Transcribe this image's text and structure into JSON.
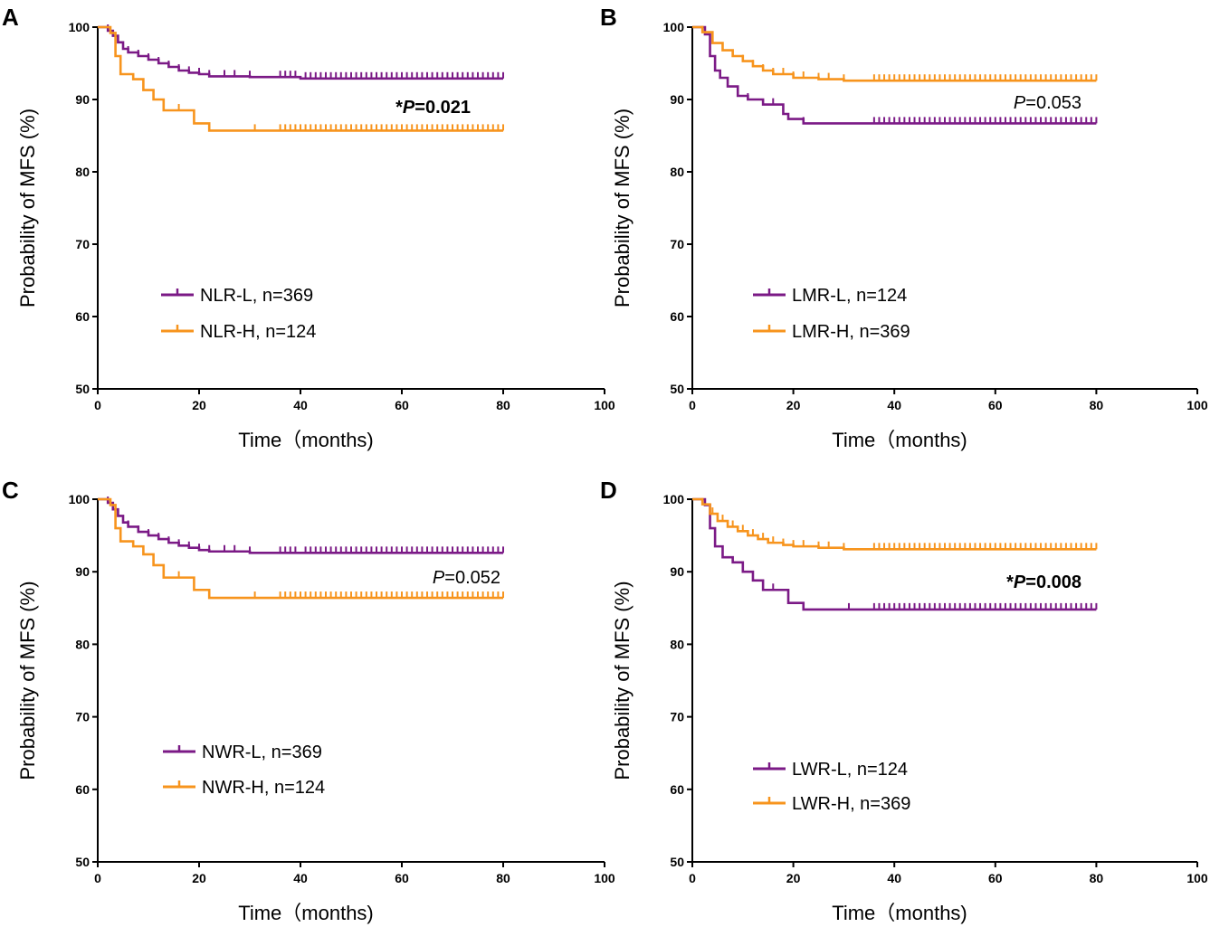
{
  "colors": {
    "purple": "#7b1a86",
    "orange": "#f7941d",
    "axis": "#000000"
  },
  "chart_data": [
    {
      "panel": "A",
      "type": "line",
      "xlabel": "Time（months)",
      "ylabel": "Probability of MFS (%)",
      "xlim": [
        0,
        100
      ],
      "ylim": [
        50,
        100
      ],
      "xticks": [
        0,
        20,
        40,
        60,
        80,
        100
      ],
      "yticks": [
        50,
        60,
        70,
        80,
        90,
        100
      ],
      "p_star": "*",
      "p_letter": "P",
      "p_rest": "=0.021",
      "p_bold": true,
      "series": [
        {
          "name": "NLR-L, n=369",
          "color": "purple",
          "steps": [
            [
              0,
              100
            ],
            [
              2,
              99.5
            ],
            [
              3,
              98.8
            ],
            [
              4,
              97.9
            ],
            [
              5,
              97
            ],
            [
              6,
              96.5
            ],
            [
              8,
              96
            ],
            [
              10,
              95.5
            ],
            [
              12,
              95
            ],
            [
              14,
              94.5
            ],
            [
              16,
              94
            ],
            [
              18,
              93.7
            ],
            [
              20,
              93.5
            ],
            [
              22,
              93.2
            ],
            [
              30,
              93.1
            ],
            [
              40,
              92.9
            ],
            [
              80,
              92.9
            ]
          ],
          "censor": [
            2,
            4,
            6,
            8,
            10,
            12,
            14,
            16,
            18,
            20,
            22,
            25,
            27,
            30,
            36,
            37,
            38,
            39,
            41,
            42,
            43,
            44,
            45,
            46,
            47,
            48,
            49,
            50,
            51,
            52,
            53,
            54,
            55,
            56,
            57,
            58,
            59,
            60,
            61,
            62,
            63,
            64,
            65,
            66,
            67,
            68,
            69,
            70,
            71,
            72,
            73,
            74,
            75,
            76,
            77,
            78,
            79,
            80
          ]
        },
        {
          "name": "NLR-H, n=124",
          "color": "orange",
          "steps": [
            [
              0,
              100
            ],
            [
              2.5,
              99.2
            ],
            [
              3.5,
              96
            ],
            [
              4.5,
              93.5
            ],
            [
              7,
              92.8
            ],
            [
              9,
              91.3
            ],
            [
              11,
              90
            ],
            [
              13,
              88.5
            ],
            [
              19,
              86.7
            ],
            [
              22,
              85.7
            ],
            [
              80,
              85.7
            ]
          ],
          "censor": [
            13,
            16,
            31,
            36,
            37,
            38,
            39,
            40,
            41,
            42,
            43,
            44,
            45,
            46,
            47,
            48,
            49,
            50,
            51,
            52,
            53,
            54,
            55,
            56,
            57,
            58,
            59,
            60,
            61,
            62,
            63,
            64,
            65,
            66,
            67,
            68,
            69,
            70,
            71,
            72,
            73,
            74,
            75,
            76,
            77,
            78,
            79,
            80
          ]
        }
      ]
    },
    {
      "panel": "B",
      "type": "line",
      "xlabel": "Time（months)",
      "ylabel": "Probability of MFS (%)",
      "xlim": [
        0,
        100
      ],
      "ylim": [
        50,
        100
      ],
      "xticks": [
        0,
        20,
        40,
        60,
        80,
        100
      ],
      "yticks": [
        50,
        60,
        70,
        80,
        90,
        100
      ],
      "p_star": "",
      "p_letter": "P",
      "p_rest": "=0.053",
      "p_bold": false,
      "series": [
        {
          "name": "LMR-L, n=124",
          "color": "purple",
          "steps": [
            [
              0,
              100
            ],
            [
              2.5,
              99
            ],
            [
              3.5,
              96
            ],
            [
              4.5,
              94
            ],
            [
              5.5,
              93
            ],
            [
              7,
              91.8
            ],
            [
              9,
              90.5
            ],
            [
              11,
              90
            ],
            [
              14,
              89.3
            ],
            [
              18,
              88
            ],
            [
              19,
              87.3
            ],
            [
              22,
              86.7
            ],
            [
              80,
              86.7
            ]
          ],
          "censor": [
            11,
            16,
            22,
            36,
            37,
            38,
            39,
            40,
            41,
            42,
            43,
            44,
            45,
            46,
            47,
            48,
            49,
            50,
            51,
            52,
            53,
            54,
            55,
            56,
            57,
            58,
            59,
            60,
            61,
            62,
            63,
            64,
            65,
            66,
            67,
            68,
            69,
            70,
            71,
            72,
            73,
            74,
            75,
            76,
            77,
            78,
            79,
            80
          ]
        },
        {
          "name": "LMR-H, n=369",
          "color": "orange",
          "steps": [
            [
              0,
              100
            ],
            [
              2,
              99.3
            ],
            [
              4,
              97.8
            ],
            [
              6,
              96.8
            ],
            [
              8,
              96
            ],
            [
              10,
              95.3
            ],
            [
              12,
              94.6
            ],
            [
              14,
              94
            ],
            [
              16,
              93.5
            ],
            [
              20,
              93
            ],
            [
              25,
              92.8
            ],
            [
              30,
              92.6
            ],
            [
              80,
              92.6
            ]
          ],
          "censor": [
            2,
            4,
            6,
            8,
            10,
            12,
            14,
            16,
            18,
            20,
            22,
            25,
            27,
            30,
            36,
            37,
            38,
            39,
            40,
            41,
            42,
            43,
            44,
            45,
            46,
            47,
            48,
            49,
            50,
            51,
            52,
            53,
            54,
            55,
            56,
            57,
            58,
            59,
            60,
            61,
            62,
            63,
            64,
            65,
            66,
            67,
            68,
            69,
            70,
            71,
            72,
            73,
            74,
            75,
            76,
            77,
            78,
            79,
            80
          ]
        }
      ]
    },
    {
      "panel": "C",
      "type": "line",
      "xlabel": "Time（months)",
      "ylabel": "Probability of MFS (%)",
      "xlim": [
        0,
        100
      ],
      "ylim": [
        50,
        100
      ],
      "xticks": [
        0,
        20,
        40,
        60,
        80,
        100
      ],
      "yticks": [
        50,
        60,
        70,
        80,
        90,
        100
      ],
      "p_star": "",
      "p_letter": "P",
      "p_rest": "=0.052",
      "p_bold": false,
      "series": [
        {
          "name": "NWR-L, n=369",
          "color": "purple",
          "steps": [
            [
              0,
              100
            ],
            [
              2,
              99.5
            ],
            [
              3,
              98.6
            ],
            [
              4,
              97.7
            ],
            [
              5,
              96.8
            ],
            [
              6,
              96.2
            ],
            [
              8,
              95.5
            ],
            [
              10,
              95
            ],
            [
              12,
              94.5
            ],
            [
              14,
              94
            ],
            [
              16,
              93.6
            ],
            [
              18,
              93.3
            ],
            [
              20,
              93
            ],
            [
              22,
              92.8
            ],
            [
              30,
              92.6
            ],
            [
              80,
              92.6
            ]
          ],
          "censor": [
            2,
            4,
            6,
            8,
            10,
            12,
            14,
            16,
            18,
            20,
            22,
            25,
            27,
            30,
            36,
            37,
            38,
            39,
            41,
            42,
            43,
            44,
            45,
            46,
            47,
            48,
            49,
            50,
            51,
            52,
            53,
            54,
            55,
            56,
            57,
            58,
            59,
            60,
            61,
            62,
            63,
            64,
            65,
            66,
            67,
            68,
            69,
            70,
            71,
            72,
            73,
            74,
            75,
            76,
            77,
            78,
            79,
            80
          ]
        },
        {
          "name": "NWR-H, n=124",
          "color": "orange",
          "steps": [
            [
              0,
              100
            ],
            [
              2.5,
              99.2
            ],
            [
              3.5,
              96
            ],
            [
              4.5,
              94.2
            ],
            [
              7,
              93.5
            ],
            [
              9,
              92.4
            ],
            [
              11,
              90.9
            ],
            [
              13,
              89.2
            ],
            [
              19,
              87.5
            ],
            [
              22,
              86.4
            ],
            [
              80,
              86.4
            ]
          ],
          "censor": [
            13,
            16,
            31,
            36,
            37,
            38,
            39,
            40,
            41,
            42,
            43,
            44,
            45,
            46,
            47,
            48,
            49,
            50,
            51,
            52,
            53,
            54,
            55,
            56,
            57,
            58,
            59,
            60,
            61,
            62,
            63,
            64,
            65,
            66,
            67,
            68,
            69,
            70,
            71,
            72,
            73,
            74,
            75,
            76,
            77,
            78,
            79,
            80
          ]
        }
      ]
    },
    {
      "panel": "D",
      "type": "line",
      "xlabel": "Time（months)",
      "ylabel": "Probability of MFS (%)",
      "xlim": [
        0,
        100
      ],
      "ylim": [
        50,
        100
      ],
      "xticks": [
        0,
        20,
        40,
        60,
        80,
        100
      ],
      "yticks": [
        50,
        60,
        70,
        80,
        90,
        100
      ],
      "p_star": "*",
      "p_letter": "P",
      "p_rest": "=0.008",
      "p_bold": true,
      "series": [
        {
          "name": "LWR-L, n=124",
          "color": "purple",
          "steps": [
            [
              0,
              100
            ],
            [
              2.5,
              99.2
            ],
            [
              3.5,
              96
            ],
            [
              4.5,
              93.5
            ],
            [
              6,
              92
            ],
            [
              8,
              91.3
            ],
            [
              10,
              90
            ],
            [
              12,
              88.8
            ],
            [
              14,
              87.5
            ],
            [
              19,
              85.7
            ],
            [
              22,
              84.8
            ],
            [
              80,
              84.8
            ]
          ],
          "censor": [
            12,
            16,
            31,
            36,
            37,
            38,
            39,
            40,
            41,
            42,
            43,
            44,
            45,
            46,
            47,
            48,
            49,
            50,
            51,
            52,
            53,
            54,
            55,
            56,
            57,
            58,
            59,
            60,
            61,
            62,
            63,
            64,
            65,
            66,
            67,
            68,
            69,
            70,
            71,
            72,
            73,
            74,
            75,
            76,
            77,
            78,
            79,
            80
          ]
        },
        {
          "name": "LWR-H, n=369",
          "color": "orange",
          "steps": [
            [
              0,
              100
            ],
            [
              2,
              99.3
            ],
            [
              3.5,
              98
            ],
            [
              5,
              97
            ],
            [
              7,
              96.2
            ],
            [
              9,
              95.6
            ],
            [
              11,
              95
            ],
            [
              13,
              94.5
            ],
            [
              15,
              94
            ],
            [
              18,
              93.7
            ],
            [
              20,
              93.5
            ],
            [
              25,
              93.3
            ],
            [
              30,
              93.1
            ],
            [
              80,
              93.1
            ]
          ],
          "censor": [
            2,
            4,
            6,
            8,
            10,
            12,
            14,
            16,
            18,
            20,
            22,
            25,
            27,
            30,
            36,
            37,
            38,
            39,
            40,
            41,
            42,
            43,
            44,
            45,
            46,
            47,
            48,
            49,
            50,
            51,
            52,
            53,
            54,
            55,
            56,
            57,
            58,
            59,
            60,
            61,
            62,
            63,
            64,
            65,
            66,
            67,
            68,
            69,
            70,
            71,
            72,
            73,
            74,
            75,
            76,
            77,
            78,
            79,
            80
          ]
        }
      ]
    }
  ]
}
